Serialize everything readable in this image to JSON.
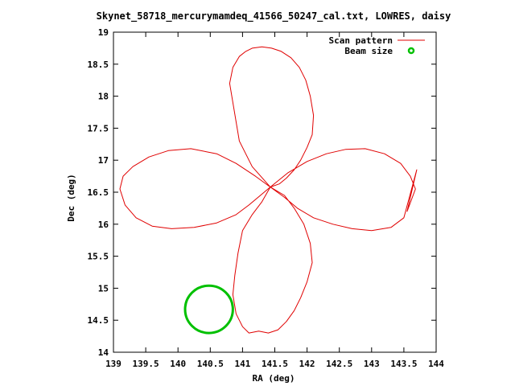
{
  "chart_data": {
    "type": "line",
    "title": "Skynet_58718_mercurymamdeq_41566_50247_cal.txt, LOWRES, daisy",
    "xlabel": "RA (deg)",
    "ylabel": "Dec (deg)",
    "xlim": [
      139,
      144
    ],
    "ylim": [
      14,
      19
    ],
    "x_ticks": [
      "139",
      "139.5",
      "140",
      "140.5",
      "141",
      "141.5",
      "142",
      "142.5",
      "143",
      "143.5",
      "144"
    ],
    "y_ticks": [
      "14",
      "14.5",
      "15",
      "15.5",
      "16",
      "16.5",
      "17",
      "17.5",
      "18",
      "18.5",
      "19"
    ],
    "grid": false,
    "legend_position": "top-right",
    "series": [
      {
        "name": "Scan pattern",
        "color": "#e00000",
        "x": [
          141.43,
          141.15,
          140.95,
          140.9,
          140.85,
          140.8,
          140.85,
          140.95,
          141.05,
          141.15,
          141.3,
          141.45,
          141.6,
          141.75,
          141.88,
          141.98,
          142.05,
          142.1,
          142.08,
          142.0,
          141.9,
          141.8,
          141.68,
          141.57,
          141.43,
          141.2,
          140.9,
          140.6,
          140.2,
          139.85,
          139.55,
          139.3,
          139.15,
          139.1,
          139.18,
          139.35,
          139.6,
          139.9,
          140.25,
          140.6,
          140.9,
          141.1,
          141.3,
          141.43,
          141.3,
          141.15,
          141.0,
          140.93,
          140.88,
          140.85,
          140.9,
          141.0,
          141.1,
          141.25,
          141.4,
          141.55,
          141.68,
          141.8,
          141.9,
          142.0,
          142.08,
          142.05,
          141.95,
          141.8,
          141.65,
          141.43,
          141.7,
          142.0,
          142.3,
          142.6,
          142.9,
          143.2,
          143.45,
          143.6,
          143.68,
          143.55,
          143.7,
          143.5,
          143.3,
          143.0,
          142.7,
          142.4,
          142.1,
          141.85,
          141.65,
          141.43
        ],
        "y": [
          16.58,
          16.9,
          17.3,
          17.6,
          17.9,
          18.2,
          18.45,
          18.62,
          18.7,
          18.75,
          18.77,
          18.75,
          18.7,
          18.6,
          18.45,
          18.25,
          18.0,
          17.7,
          17.4,
          17.2,
          17.0,
          16.85,
          16.72,
          16.63,
          16.58,
          16.75,
          16.95,
          17.1,
          17.18,
          17.15,
          17.05,
          16.9,
          16.75,
          16.55,
          16.3,
          16.1,
          15.97,
          15.93,
          15.95,
          16.02,
          16.15,
          16.3,
          16.47,
          16.58,
          16.35,
          16.15,
          15.9,
          15.55,
          15.2,
          14.9,
          14.6,
          14.4,
          14.3,
          14.33,
          14.3,
          14.35,
          14.48,
          14.65,
          14.85,
          15.1,
          15.4,
          15.7,
          16.0,
          16.25,
          16.45,
          16.58,
          16.8,
          16.98,
          17.1,
          17.17,
          17.18,
          17.1,
          16.95,
          16.75,
          16.55,
          16.2,
          16.85,
          16.1,
          15.95,
          15.9,
          15.93,
          16.0,
          16.1,
          16.25,
          16.42,
          16.58
        ]
      },
      {
        "name": "Beam size",
        "color": "#00c000",
        "type": "circle",
        "center": [
          140.48,
          14.67
        ],
        "radius_deg": 0.37
      }
    ]
  }
}
